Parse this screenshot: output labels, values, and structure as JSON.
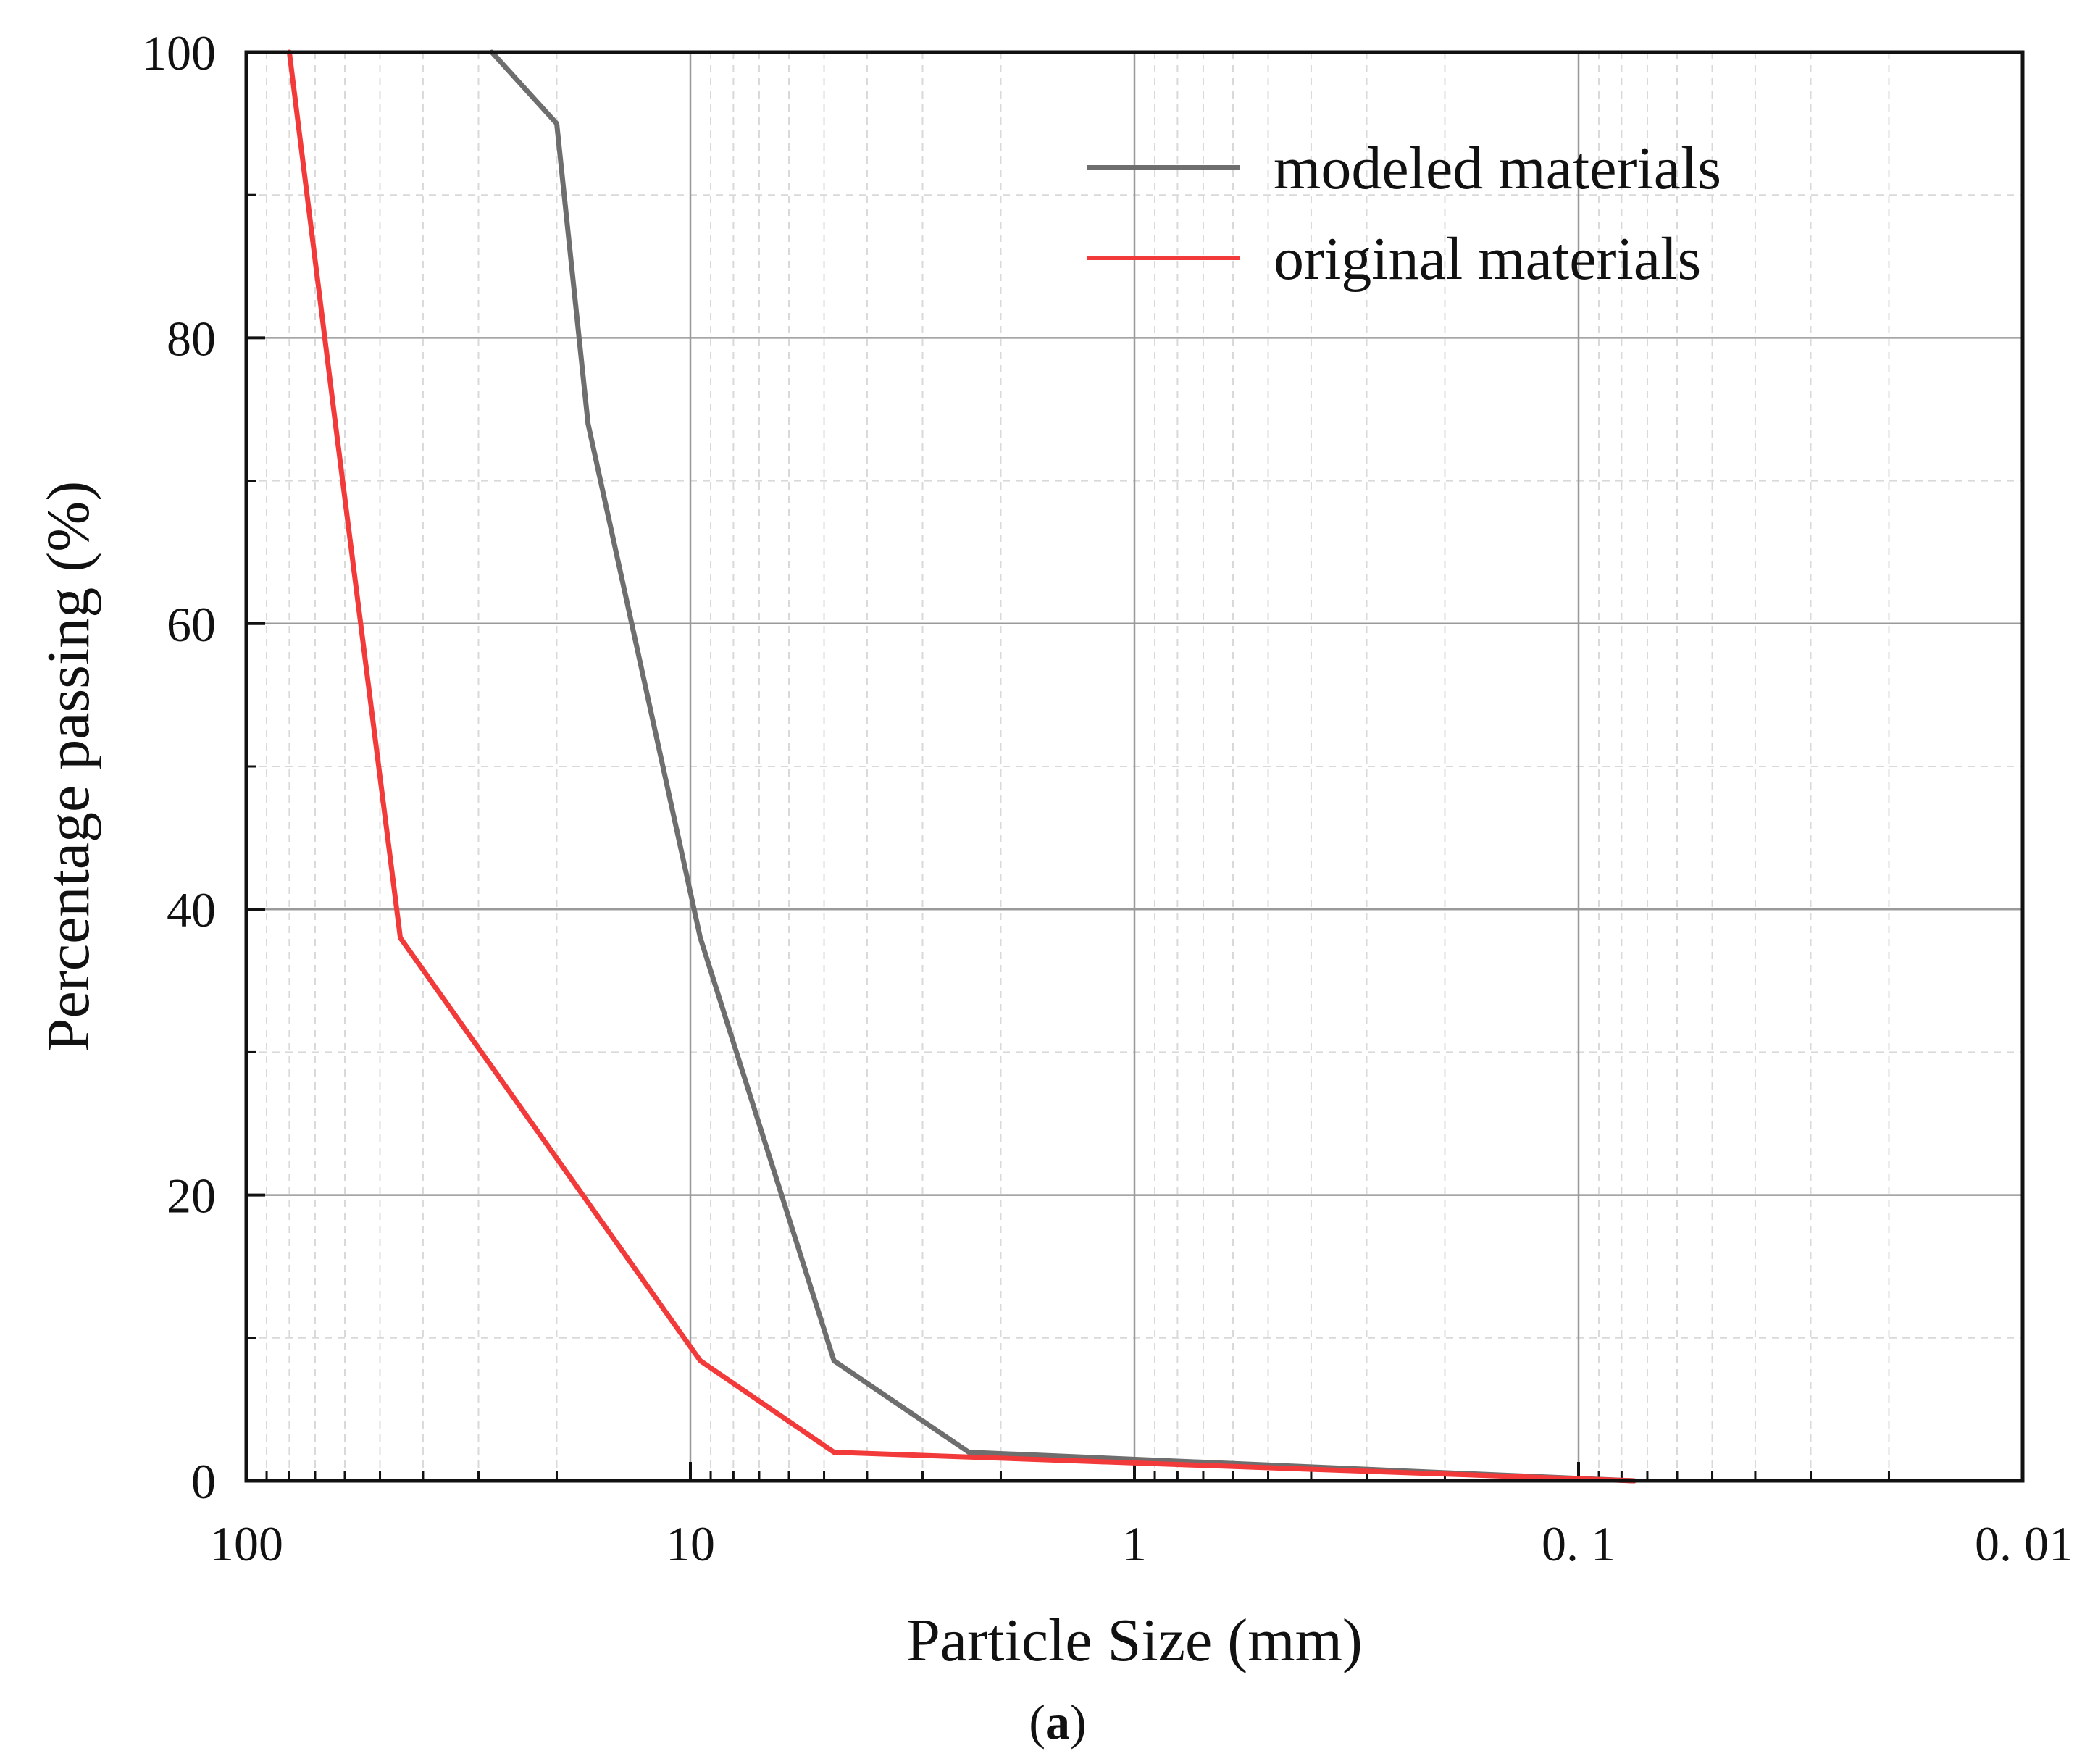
{
  "chart_data": {
    "type": "line",
    "x_scale": "log",
    "x_reversed": true,
    "xlabel": "Particle Size (mm)",
    "ylabel": "Percentage passing (%)",
    "xlim": [
      100,
      0.01
    ],
    "ylim": [
      0,
      100
    ],
    "x_ticks": [
      {
        "value": 100,
        "label": "100"
      },
      {
        "value": 10,
        "label": "10"
      },
      {
        "value": 1,
        "label": "1"
      },
      {
        "value": 0.1,
        "label": "0. 1"
      },
      {
        "value": 0.01,
        "label": "0. 01"
      }
    ],
    "y_ticks": [
      {
        "value": 0,
        "label": "0"
      },
      {
        "value": 20,
        "label": "20"
      },
      {
        "value": 40,
        "label": "40"
      },
      {
        "value": 60,
        "label": "60"
      },
      {
        "value": 80,
        "label": "80"
      },
      {
        "value": 100,
        "label": "100"
      }
    ],
    "grid": true,
    "legend_position": "top-right",
    "series": [
      {
        "name": "modeled materials",
        "color": "#6e6e6e",
        "x": [
          28,
          20,
          17,
          9.5,
          4.75,
          2.36,
          0.075
        ],
        "y": [
          100,
          95,
          74,
          38,
          8.4,
          2,
          0
        ]
      },
      {
        "name": "original materials",
        "color": "#f23a3a",
        "x": [
          80,
          63,
          45,
          9.5,
          4.75,
          0.075
        ],
        "y": [
          100,
          74,
          38,
          8.4,
          2,
          0
        ]
      }
    ]
  },
  "caption": {
    "open": "(",
    "letter": "a",
    "close": ")"
  }
}
